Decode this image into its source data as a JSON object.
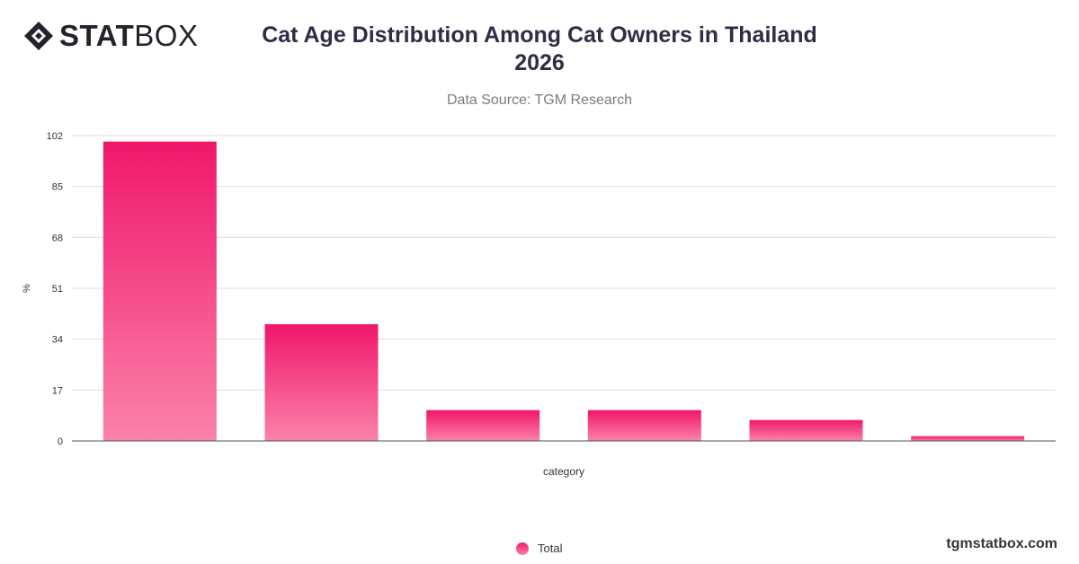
{
  "brand": {
    "logo_bold": "STAT",
    "logo_thin": "BOX",
    "site": "tgmstatbox.com"
  },
  "header": {
    "title_line1": "Cat Age Distribution Among Cat Owners in Thailand",
    "title_line2": "2026",
    "subtitle": "Data Source: TGM Research"
  },
  "colors": {
    "bar_top": "#f0176a",
    "bar_bottom": "#fb82aa",
    "grid": "#dcdcdc",
    "axis": "#555555"
  },
  "chart_data": {
    "type": "bar",
    "title": "Cat Age Distribution Among Cat Owners in Thailand 2026",
    "subtitle": "Data Source: TGM Research",
    "xlabel": "category",
    "ylabel": "%",
    "categories": [
      "",
      "",
      "",
      "",
      "",
      ""
    ],
    "series": [
      {
        "name": "Total",
        "values": [
          100,
          39,
          10.3,
          10.3,
          7,
          1.6
        ]
      }
    ],
    "yticks": [
      0,
      17,
      34,
      51,
      68,
      85,
      102
    ],
    "ylim": [
      0,
      102
    ],
    "grid": true,
    "legend": "bottom-center"
  }
}
